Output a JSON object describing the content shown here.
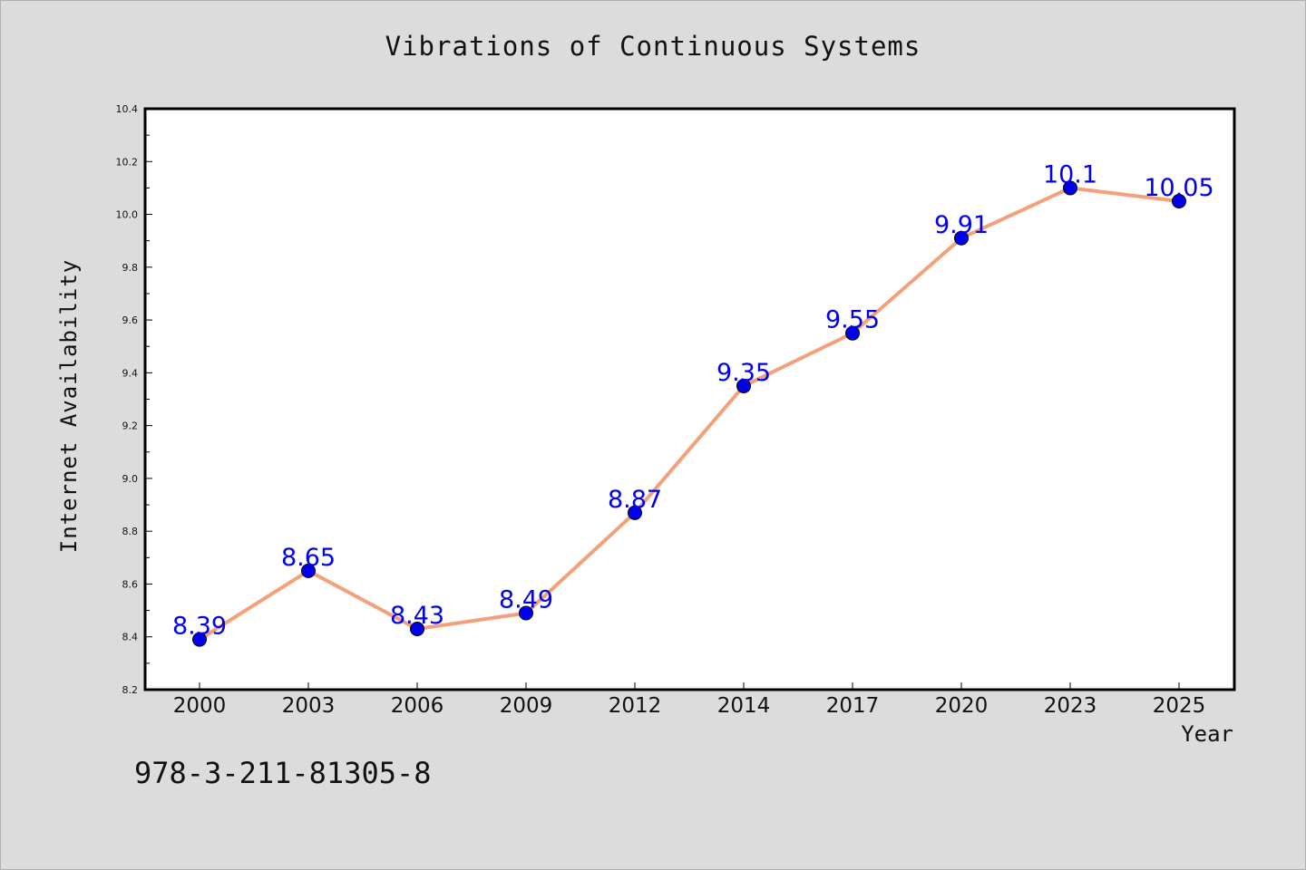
{
  "chart_data": {
    "type": "line",
    "title": "Vibrations of Continuous Systems",
    "xlabel": "Year",
    "ylabel": "Internet Availability",
    "categories": [
      "2000",
      "2003",
      "2006",
      "2009",
      "2012",
      "2014",
      "2017",
      "2020",
      "2023",
      "2025"
    ],
    "series": [
      {
        "values": [
          8.39,
          8.65,
          8.43,
          8.49,
          8.87,
          9.35,
          9.55,
          9.91,
          10.1,
          10.05
        ],
        "labels": [
          "8.39",
          "8.65",
          "8.43",
          "8.49",
          "8.87",
          "9.35",
          "9.55",
          "9.91",
          "10.1",
          "10.05"
        ],
        "line_color": "#f4a07a",
        "marker_color": "#0000ee",
        "label_color": "#0000ee"
      }
    ],
    "ylim": [
      8.2,
      10.4
    ],
    "yticks": [
      "8.2",
      "8.4",
      "8.6",
      "8.8",
      "9.0",
      "9.2",
      "9.4",
      "9.6",
      "9.8",
      "10.0",
      "10.2",
      "10.4"
    ],
    "grid": false,
    "legend": "none"
  },
  "footer": {
    "isbn": "978-3-211-81305-8"
  }
}
